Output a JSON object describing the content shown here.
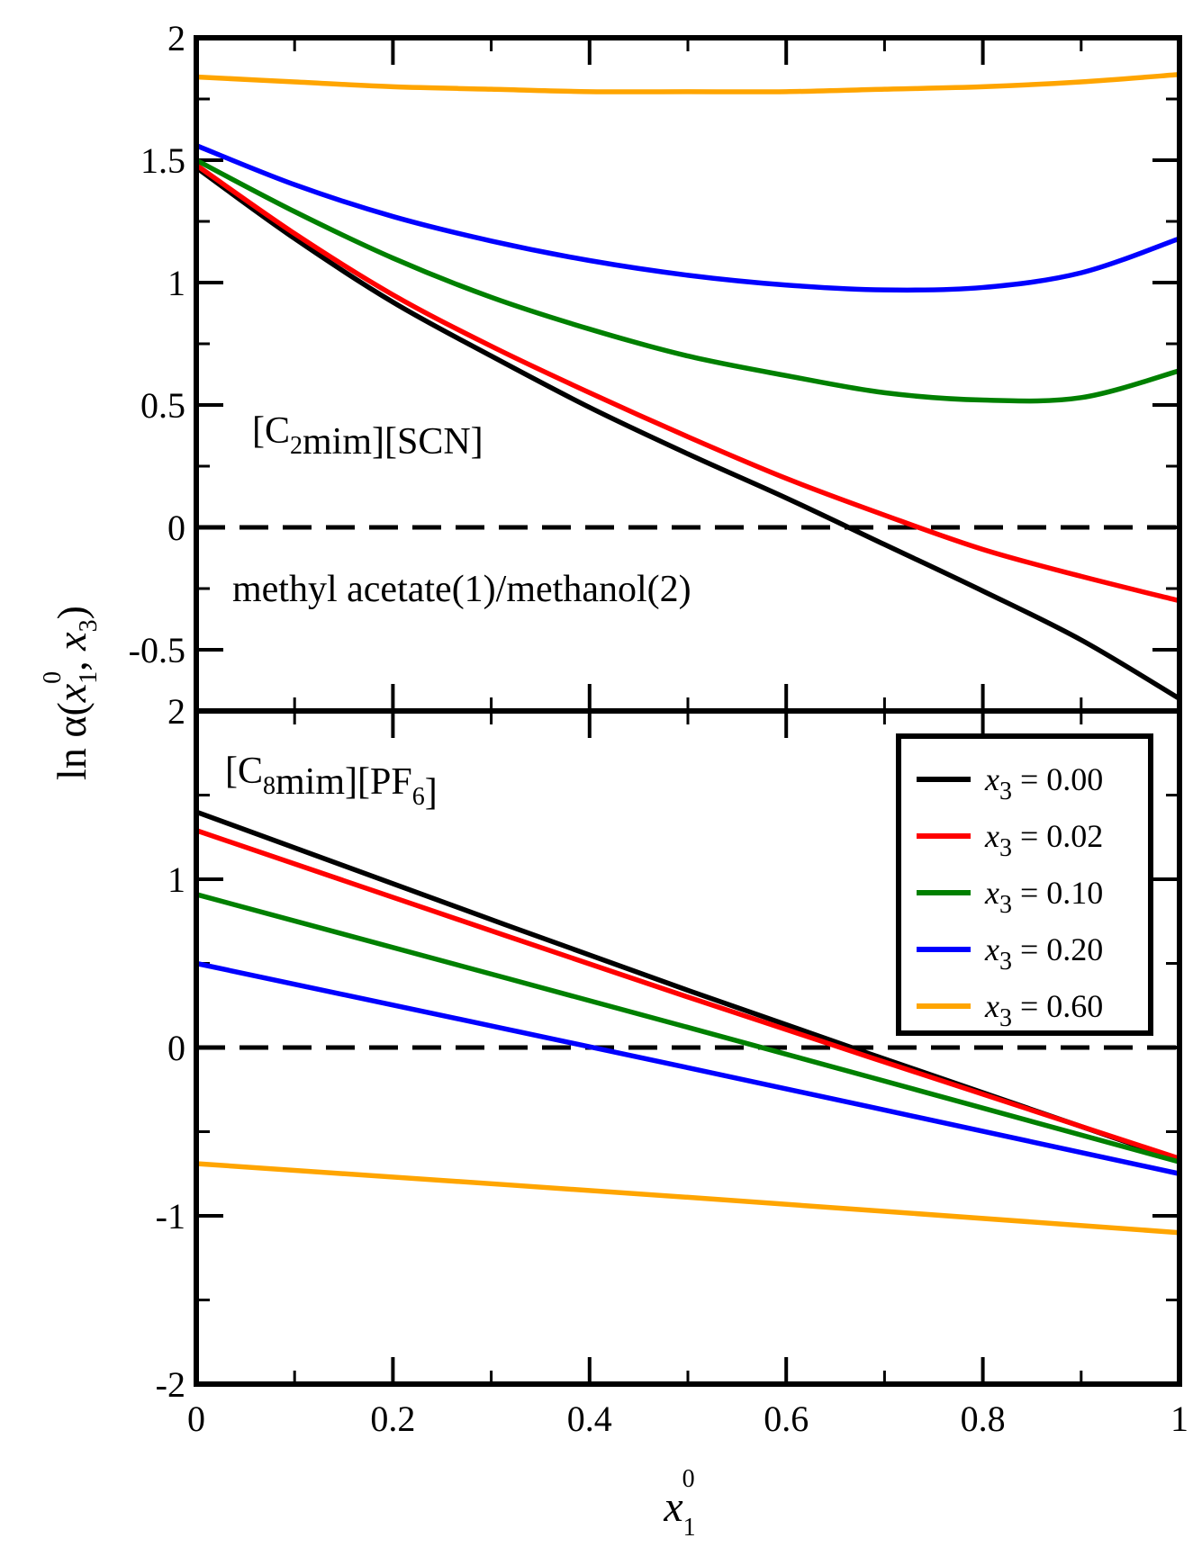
{
  "figure": {
    "ylabel": "ln α(x1⁰, x3)",
    "xlabel": "x1⁰"
  },
  "chart_data": [
    {
      "type": "line",
      "panel": "top",
      "annotations": [
        {
          "id": "ann-il",
          "text": "[C2mim][SCN]"
        },
        {
          "id": "ann-mix",
          "text": "methyl acetate(1)/methanol(2)"
        }
      ],
      "xlim": [
        0,
        1
      ],
      "ylim": [
        -0.75,
        2
      ],
      "yticks": [
        -0.5,
        0,
        0.5,
        1,
        1.5,
        2
      ],
      "ytick_labels": [
        "-0.5",
        "0",
        "0.5",
        "1",
        "1.5",
        "2"
      ],
      "reference_line": 0,
      "series": [
        {
          "name": "x3 = 0.00",
          "color": "#000000",
          "x": [
            0,
            0.1,
            0.2,
            0.3,
            0.4,
            0.5,
            0.6,
            0.7,
            0.8,
            0.9,
            1.0
          ],
          "y": [
            1.47,
            1.18,
            0.92,
            0.7,
            0.49,
            0.3,
            0.12,
            -0.07,
            -0.26,
            -0.46,
            -0.7
          ]
        },
        {
          "name": "x3 = 0.02",
          "color": "#ff0000",
          "x": [
            0,
            0.1,
            0.2,
            0.3,
            0.4,
            0.5,
            0.6,
            0.7,
            0.8,
            0.9,
            1.0
          ],
          "y": [
            1.48,
            1.2,
            0.95,
            0.74,
            0.55,
            0.37,
            0.2,
            0.05,
            -0.09,
            -0.2,
            -0.3
          ]
        },
        {
          "name": "x3 = 0.10",
          "color": "#008000",
          "x": [
            0,
            0.1,
            0.2,
            0.3,
            0.4,
            0.5,
            0.6,
            0.7,
            0.8,
            0.9,
            1.0
          ],
          "y": [
            1.5,
            1.29,
            1.1,
            0.94,
            0.81,
            0.7,
            0.62,
            0.55,
            0.52,
            0.53,
            0.64
          ]
        },
        {
          "name": "x3 = 0.20",
          "color": "#0000ff",
          "x": [
            0,
            0.1,
            0.2,
            0.3,
            0.4,
            0.5,
            0.6,
            0.7,
            0.8,
            0.9,
            1.0
          ],
          "y": [
            1.56,
            1.4,
            1.27,
            1.17,
            1.09,
            1.03,
            0.99,
            0.97,
            0.98,
            1.04,
            1.18
          ]
        },
        {
          "name": "x3 = 0.60",
          "color": "#ffa500",
          "x": [
            0,
            0.1,
            0.2,
            0.3,
            0.4,
            0.5,
            0.6,
            0.7,
            0.8,
            0.9,
            1.0
          ],
          "y": [
            1.84,
            1.82,
            1.8,
            1.79,
            1.78,
            1.78,
            1.78,
            1.79,
            1.8,
            1.82,
            1.85
          ]
        }
      ]
    },
    {
      "type": "line",
      "panel": "bottom",
      "annotations": [
        {
          "id": "ann-il",
          "text": "[C8mim][PF6]"
        }
      ],
      "xlim": [
        0,
        1
      ],
      "ylim": [
        -2,
        2
      ],
      "xticks": [
        0,
        0.2,
        0.4,
        0.6,
        0.8,
        1
      ],
      "xtick_labels": [
        "0",
        "0.2",
        "0.4",
        "0.6",
        "0.8",
        "1"
      ],
      "yticks": [
        -2,
        -1,
        0,
        1,
        2
      ],
      "ytick_labels": [
        "-2",
        "-1",
        "0",
        "1",
        "2"
      ],
      "reference_line": 0,
      "legend": {
        "placement": "top-right",
        "entries": [
          "x3 = 0.00",
          "x3 = 0.02",
          "x3 = 0.10",
          "x3 = 0.20",
          "x3 = 0.60"
        ]
      },
      "series": [
        {
          "name": "x3 = 0.00",
          "color": "#000000",
          "x": [
            0,
            0.5,
            1.0
          ],
          "y": [
            1.4,
            0.34,
            -0.67
          ]
        },
        {
          "name": "x3 = 0.02",
          "color": "#ff0000",
          "x": [
            0,
            0.5,
            1.0
          ],
          "y": [
            1.29,
            0.3,
            -0.66
          ]
        },
        {
          "name": "x3 = 0.10",
          "color": "#008000",
          "x": [
            0,
            0.5,
            1.0
          ],
          "y": [
            0.91,
            0.12,
            -0.68
          ]
        },
        {
          "name": "x3 = 0.20",
          "color": "#0000ff",
          "x": [
            0,
            0.5,
            1.0
          ],
          "y": [
            0.5,
            -0.12,
            -0.75
          ]
        },
        {
          "name": "x3 = 0.60",
          "color": "#ffa500",
          "x": [
            0,
            0.5,
            1.0
          ],
          "y": [
            -0.69,
            -0.89,
            -1.1
          ]
        }
      ]
    }
  ]
}
